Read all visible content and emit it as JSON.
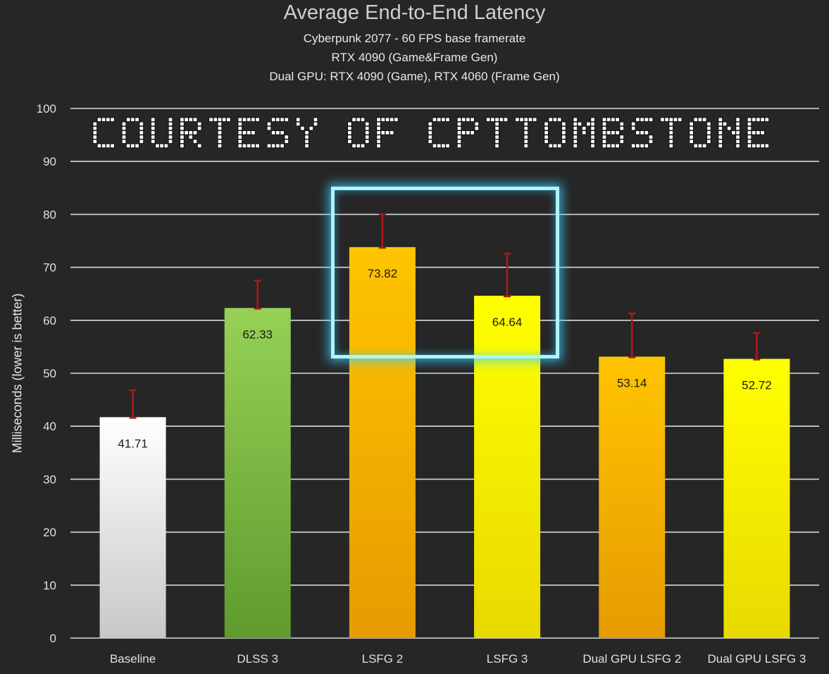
{
  "watermark": "COURTESY OF CPTTOMBSTONE",
  "colors": {
    "background": "#262626",
    "gridline": "#d9d9d9",
    "error_bar": "#b01818",
    "highlight": "#aef4ff"
  },
  "chart_data": {
    "type": "bar",
    "title": "Average End-to-End Latency",
    "subtitle_lines": [
      "Cyberpunk 2077 - 60 FPS base framerate",
      "RTX 4090 (Game&Frame Gen)",
      "Dual GPU: RTX 4090 (Game), RTX 4060 (Frame Gen)"
    ],
    "xlabel": "",
    "ylabel": "Milliseconds (lower is better)",
    "ylim": [
      0,
      100
    ],
    "yticks": [
      0,
      10,
      20,
      30,
      40,
      50,
      60,
      70,
      80,
      90,
      100
    ],
    "grid": true,
    "categories": [
      "Baseline",
      "DLSS 3",
      "LSFG 2",
      "LSFG 3",
      "Dual GPU LSFG 2",
      "Dual GPU LSFG 3"
    ],
    "values": [
      41.71,
      62.33,
      73.82,
      64.64,
      53.14,
      52.72
    ],
    "value_labels": [
      "41.71",
      "62.33",
      "73.82",
      "64.64",
      "53.14",
      "52.72"
    ],
    "error_upper": [
      46.8,
      67.5,
      80.0,
      72.6,
      61.3,
      57.6
    ],
    "bar_colors": [
      [
        "#ffffff",
        "#c8c8c8"
      ],
      [
        "#96d155",
        "#5f9a2f"
      ],
      [
        "#ffc400",
        "#e69b00"
      ],
      [
        "#ffff00",
        "#e8d900"
      ],
      [
        "#ffc400",
        "#e69b00"
      ],
      [
        "#ffff00",
        "#e8d900"
      ]
    ],
    "highlighted_categories": [
      "LSFG 2",
      "LSFG 3"
    ]
  }
}
